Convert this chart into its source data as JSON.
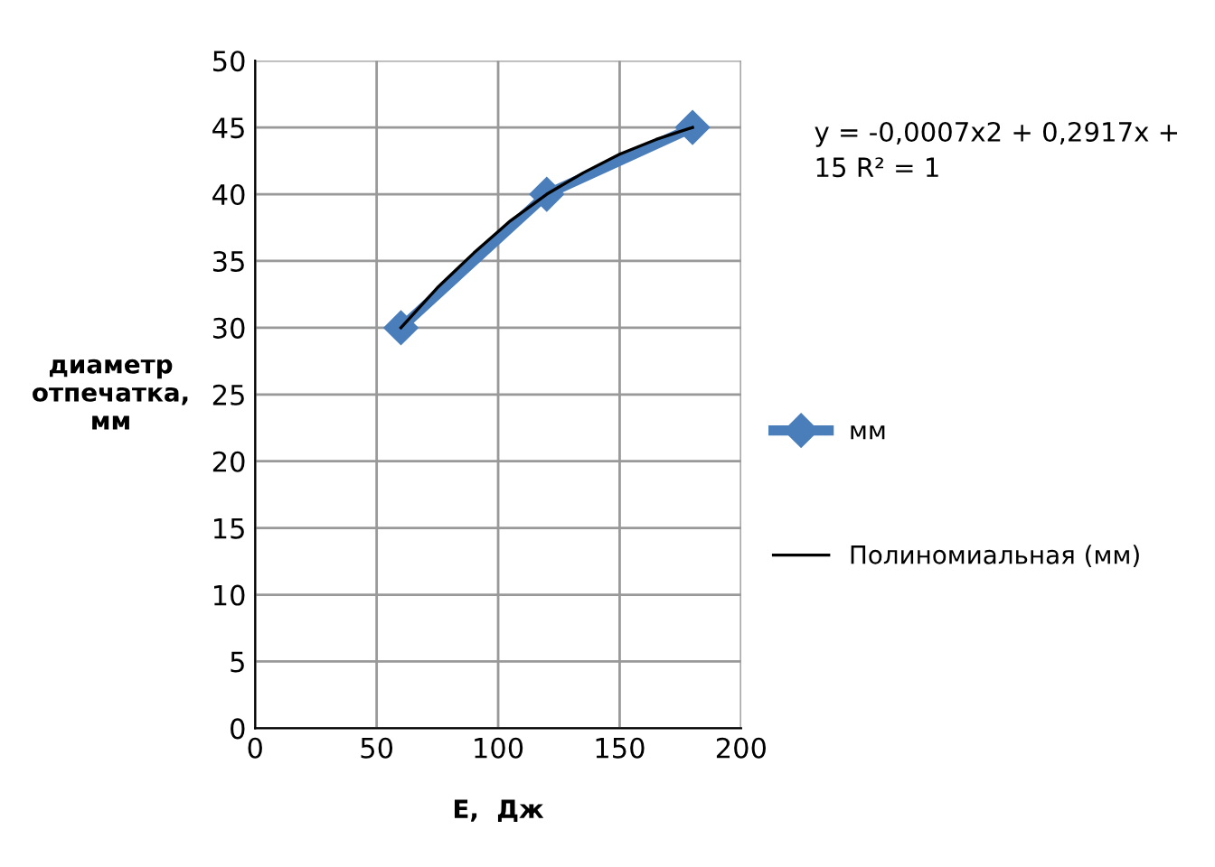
{
  "chart_data": {
    "type": "line",
    "xlabel": "E,  Дж",
    "ylabel": "диаметр отпечатка, мм",
    "x": [
      60,
      120,
      180
    ],
    "series": [
      {
        "name": "мм",
        "color": "#4a7ebb",
        "values": [
          30,
          40,
          45
        ],
        "marker": "diamond"
      },
      {
        "name": "Полиномиальная (мм)",
        "color": "#000000",
        "type": "line",
        "marker": "none",
        "x": [
          60,
          75,
          90,
          105,
          120,
          135,
          150,
          165,
          180
        ],
        "values": [
          30,
          33,
          35.6,
          38,
          40,
          41.6,
          43,
          44.1,
          45
        ]
      }
    ],
    "annotations": [
      "y = -0,0007x2 + 0,2917x + 15 R² = 1"
    ],
    "xlim": [
      0,
      200
    ],
    "xticks": [
      0,
      50,
      100,
      150,
      200
    ],
    "ylim": [
      0,
      50
    ],
    "yticks": [
      0,
      5,
      10,
      15,
      20,
      25,
      30,
      35,
      40,
      45,
      50
    ],
    "grid": true,
    "legend": "right"
  }
}
